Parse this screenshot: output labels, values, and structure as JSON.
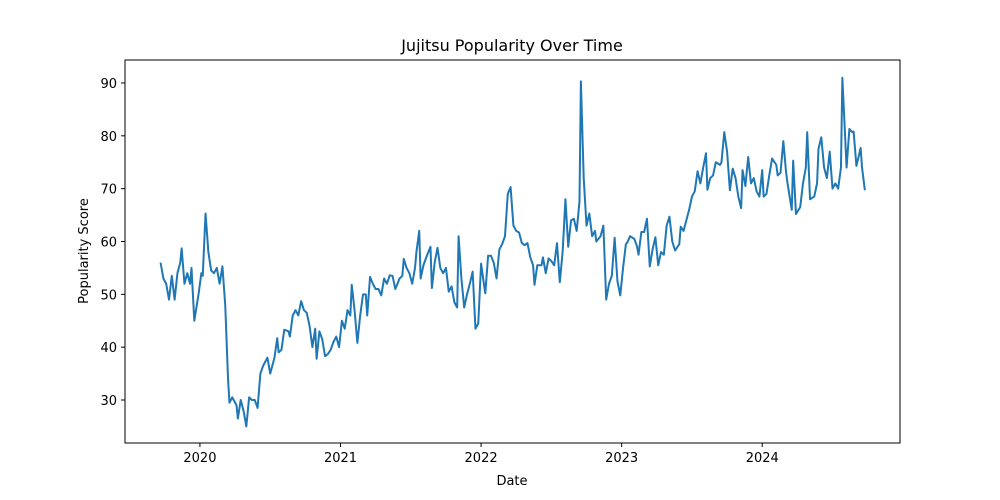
{
  "chart_data": {
    "type": "line",
    "title": "Jujitsu Popularity Over Time",
    "x_label": "Date",
    "y_label": "Popularity Score",
    "x": [
      2019.72,
      2019.74,
      2019.76,
      2019.78,
      2019.8,
      2019.82,
      2019.84,
      2019.86,
      2019.87,
      2019.89,
      2019.91,
      2019.93,
      2019.94,
      2019.96,
      2019.99,
      2020.01,
      2020.02,
      2020.04,
      2020.06,
      2020.08,
      2020.1,
      2020.12,
      2020.14,
      2020.16,
      2020.18,
      2020.2,
      2020.21,
      2020.23,
      2020.26,
      2020.27,
      2020.29,
      2020.31,
      2020.33,
      2020.35,
      2020.37,
      2020.39,
      2020.41,
      2020.43,
      2020.45,
      2020.47,
      2020.48,
      2020.5,
      2020.53,
      2020.55,
      2020.56,
      2020.58,
      2020.6,
      2020.63,
      2020.64,
      2020.66,
      2020.68,
      2020.7,
      2020.72,
      2020.74,
      2020.76,
      2020.78,
      2020.8,
      2020.82,
      2020.83,
      2020.85,
      2020.87,
      2020.89,
      2020.91,
      2020.93,
      2020.95,
      2020.97,
      2020.99,
      2021.01,
      2021.03,
      2021.05,
      2021.07,
      2021.08,
      2021.1,
      2021.12,
      2021.14,
      2021.16,
      2021.18,
      2021.19,
      2021.21,
      2021.23,
      2021.25,
      2021.27,
      2021.29,
      2021.31,
      2021.33,
      2021.35,
      2021.37,
      2021.39,
      2021.42,
      2021.44,
      2021.45,
      2021.47,
      2021.49,
      2021.51,
      2021.53,
      2021.54,
      2021.56,
      2021.57,
      2021.59,
      2021.61,
      2021.64,
      2021.65,
      2021.67,
      2021.69,
      2021.71,
      2021.73,
      2021.75,
      2021.77,
      2021.79,
      2021.81,
      2021.83,
      2021.84,
      2021.86,
      2021.88,
      2021.9,
      2021.92,
      2021.94,
      2021.96,
      2021.98,
      2022.0,
      2022.02,
      2022.03,
      2022.05,
      2022.07,
      2022.09,
      2022.11,
      2022.13,
      2022.15,
      2022.17,
      2022.19,
      2022.21,
      2022.23,
      2022.25,
      2022.27,
      2022.29,
      2022.31,
      2022.33,
      2022.35,
      2022.37,
      2022.38,
      2022.4,
      2022.43,
      2022.44,
      2022.46,
      2022.48,
      2022.5,
      2022.52,
      2022.54,
      2022.56,
      2022.58,
      2022.6,
      2022.62,
      2022.64,
      2022.66,
      2022.68,
      2022.7,
      2022.71,
      2022.73,
      2022.75,
      2022.77,
      2022.79,
      2022.81,
      2022.82,
      2022.85,
      2022.87,
      2022.89,
      2022.91,
      2022.93,
      2022.95,
      2022.97,
      2022.99,
      2023.01,
      2023.03,
      2023.04,
      2023.06,
      2023.09,
      2023.11,
      2023.12,
      2023.14,
      2023.16,
      2023.18,
      2023.2,
      2023.22,
      2023.24,
      2023.26,
      2023.28,
      2023.3,
      2023.32,
      2023.34,
      2023.36,
      2023.38,
      2023.41,
      2023.42,
      2023.44,
      2023.46,
      2023.48,
      2023.5,
      2023.52,
      2023.54,
      2023.56,
      2023.58,
      2023.6,
      2023.61,
      2023.63,
      2023.65,
      2023.67,
      2023.7,
      2023.71,
      2023.73,
      2023.75,
      2023.77,
      2023.79,
      2023.81,
      2023.83,
      2023.85,
      2023.86,
      2023.88,
      2023.9,
      2023.92,
      2023.94,
      2023.96,
      2023.98,
      2024.0,
      2024.01,
      2024.03,
      2024.05,
      2024.07,
      2024.1,
      2024.11,
      2024.13,
      2024.15,
      2024.17,
      2024.18,
      2024.21,
      2024.22,
      2024.24,
      2024.27,
      2024.29,
      2024.31,
      2024.32,
      2024.34,
      2024.37,
      2024.39,
      2024.4,
      2024.42,
      2024.44,
      2024.46,
      2024.48,
      2024.5,
      2024.52,
      2024.54,
      2024.56,
      2024.57,
      2024.6,
      2024.62,
      2024.64,
      2024.65,
      2024.67,
      2024.7,
      2024.71,
      2024.73
    ],
    "series": [
      {
        "name": "Popularity Score",
        "color": "#1f77b4",
        "values": [
          56,
          53,
          52,
          49,
          53.5,
          49,
          54,
          56,
          58.7,
          52,
          54,
          52,
          55,
          45,
          50,
          54,
          53.5,
          65.3,
          58,
          54.5,
          54,
          55,
          52,
          55.3,
          48,
          34,
          29.5,
          30.5,
          29,
          26.5,
          30,
          28,
          25,
          30.5,
          30,
          30,
          28.5,
          35,
          36.5,
          37.5,
          38,
          35,
          38,
          41.7,
          39,
          39.5,
          43.3,
          43,
          42,
          46,
          47,
          46,
          48.7,
          47,
          46.5,
          44,
          40,
          43.5,
          37.8,
          43,
          41.5,
          38.3,
          38.7,
          39.5,
          41,
          42,
          40,
          45,
          43.5,
          47,
          46,
          51.8,
          47,
          40.8,
          46,
          50,
          50,
          46,
          53.3,
          52,
          51,
          51,
          49.8,
          53,
          52,
          53.6,
          53.5,
          51,
          53,
          53.5,
          56.7,
          55,
          54,
          52,
          55,
          58,
          62,
          53,
          55.5,
          57,
          59,
          51.2,
          56,
          58.8,
          55,
          54,
          55,
          50.5,
          51.5,
          48.5,
          47.5,
          61,
          53,
          47.5,
          50,
          52,
          54.3,
          43.5,
          44.5,
          55.8,
          52,
          50.2,
          57.3,
          57.3,
          56,
          53,
          58.5,
          59.5,
          61,
          69,
          70.3,
          63,
          62,
          61.7,
          59.7,
          59.3,
          59.7,
          57,
          55.5,
          51.8,
          55.5,
          55.5,
          57,
          54,
          56.8,
          56.3,
          55.5,
          59.7,
          52.3,
          58,
          68,
          59,
          64,
          64.3,
          62,
          67.5,
          90.3,
          72,
          63,
          65.3,
          61,
          62,
          60,
          61,
          63,
          49,
          52,
          53.5,
          60.7,
          52.5,
          49.8,
          55,
          59.5,
          59.8,
          61,
          60.5,
          59,
          57.5,
          61.8,
          61.8,
          64.3,
          55.3,
          58.5,
          60.8,
          55.5,
          58,
          57.5,
          63,
          64.7,
          60,
          58.3,
          59.5,
          62.8,
          62,
          64,
          66,
          68.5,
          69.5,
          73.3,
          71,
          74,
          76.7,
          69.8,
          72,
          72.5,
          75,
          74.5,
          75,
          80.7,
          77,
          69.7,
          73.8,
          72,
          68.5,
          66.3,
          73.5,
          70.5,
          76,
          71,
          72,
          69.5,
          68.5,
          73.5,
          68.5,
          69,
          72.5,
          75.7,
          74.5,
          72.5,
          73,
          79,
          73,
          71,
          66,
          75.3,
          65.2,
          66.5,
          71,
          74,
          80.7,
          68,
          68.5,
          71,
          77.5,
          79.7,
          74,
          72,
          77,
          70,
          71,
          70,
          74,
          91,
          74,
          81.3,
          80.7,
          80.8,
          74.3,
          77.7,
          74,
          69.7
        ]
      }
    ],
    "xlim": [
      2019.467,
      2024.98
    ],
    "xticks": [
      2020,
      2021,
      2022,
      2023,
      2024
    ],
    "ylim": [
      21.86,
      94.35
    ],
    "yticks": [
      30,
      40,
      50,
      60,
      70,
      80,
      90
    ]
  }
}
